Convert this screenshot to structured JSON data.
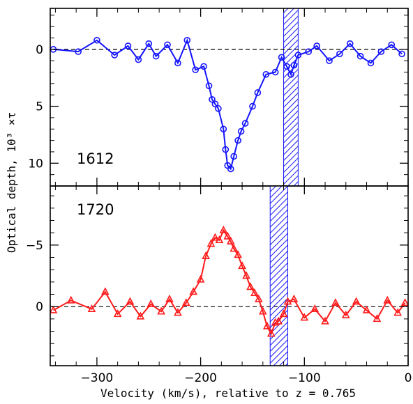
{
  "chart_data": {
    "type": "line",
    "xlabel": "Velocity (km/s), relative to z = 0.765",
    "ylabel": "Optical depth, 10³ ×τ",
    "xlim": [
      -345,
      0
    ],
    "x_ticks": [
      -300,
      -200,
      -100,
      0
    ],
    "x_tick_labels": [
      "−300",
      "−200",
      "−100",
      "0"
    ],
    "grid": false,
    "panels": [
      {
        "label": "1612",
        "ylim": [
          -3.6,
          12
        ],
        "y_axis_inverted": true,
        "y_ticks": [
          0,
          5,
          10
        ],
        "y_tick_labels": [
          "0",
          "5",
          "10"
        ],
        "zero_line": "dashed",
        "color": "#1414ff",
        "marker": "circle",
        "shaded_band": {
          "x": [
            -120,
            -106
          ],
          "pattern": "diagonal hatch"
        },
        "series": [
          {
            "x": [
              -342,
              -318,
              -300,
              -283,
              -270,
              -260,
              -250,
              -243,
              -232,
              -222,
              -213,
              -205,
              -197,
              -192,
              -189,
              -186,
              -183,
              -178,
              -176,
              -174,
              -171,
              -168,
              -164,
              -161,
              -157,
              -150,
              -145,
              -137,
              -128,
              -122,
              -117,
              -113,
              -110,
              -106,
              -96,
              -88,
              -76,
              -66,
              -56,
              -46,
              -36,
              -26,
              -16,
              -6
            ],
            "y": [
              0,
              0.2,
              -0.8,
              0.5,
              -0.3,
              0.9,
              -0.5,
              0.6,
              -0.4,
              1.2,
              -0.8,
              1.8,
              1.5,
              3.2,
              4.4,
              4.8,
              5.2,
              7,
              8.8,
              10.2,
              10.5,
              9.4,
              8,
              7.2,
              6.5,
              5,
              3.8,
              2.2,
              2,
              0.7,
              1.5,
              2.2,
              1.4,
              0.5,
              0.2,
              -0.3,
              1,
              0.4,
              -0.5,
              0.6,
              1.2,
              0.2,
              -0.4,
              0.4
            ]
          }
        ]
      },
      {
        "label": "1720",
        "ylim": [
          -9.8,
          4.8
        ],
        "y_axis_inverted": true,
        "y_ticks": [
          -5,
          0
        ],
        "y_tick_labels": [
          "−5",
          "0"
        ],
        "zero_line": "dashed",
        "color": "#ff1a1a",
        "marker": "triangle",
        "shaded_band": {
          "x": [
            -133,
            -116
          ],
          "pattern": "diagonal hatch"
        },
        "series": [
          {
            "x": [
              -342,
              -325,
              -305,
              -292,
              -280,
              -268,
              -258,
              -248,
              -238,
              -230,
              -222,
              -214,
              -207,
              -200,
              -195,
              -190,
              -186,
              -182,
              -178,
              -174,
              -171,
              -168,
              -164,
              -160,
              -156,
              -152,
              -148,
              -144,
              -140,
              -136,
              -132,
              -128,
              -125,
              -120,
              -116,
              -110,
              -100,
              -90,
              -80,
              -70,
              -60,
              -50,
              -40,
              -30,
              -20,
              -10,
              -3
            ],
            "y": [
              0.3,
              -0.5,
              0.2,
              -1.2,
              0.6,
              -0.4,
              0.8,
              -0.2,
              0.4,
              -0.6,
              0.5,
              -0.3,
              -1.2,
              -2.2,
              -4.1,
              -5.1,
              -5.6,
              -5.4,
              -6.2,
              -5.7,
              -5.3,
              -4.7,
              -4.2,
              -3.3,
              -2.5,
              -1.6,
              -1.1,
              -0.6,
              0.4,
              1.6,
              2.2,
              1.3,
              1.2,
              0.6,
              -0.4,
              -0.6,
              0.9,
              0.2,
              1.2,
              -0.3,
              0.7,
              -0.4,
              0.3,
              1,
              -0.5,
              0.5,
              -0.3
            ]
          }
        ]
      }
    ]
  }
}
